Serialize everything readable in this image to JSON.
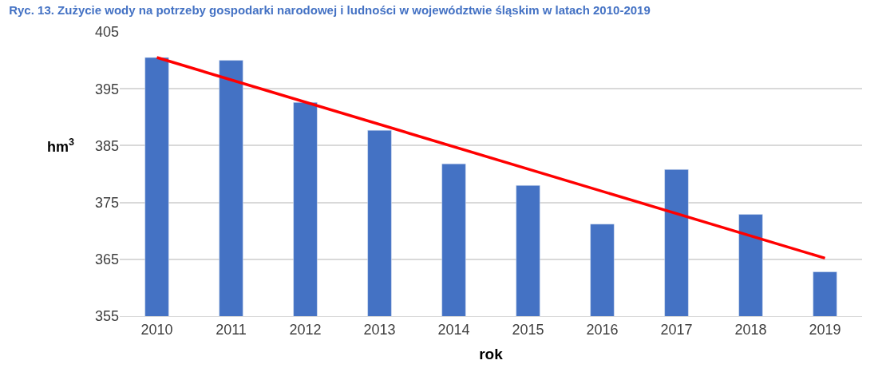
{
  "chart_data": {
    "type": "bar",
    "title": "Ryc. 13. Zużycie wody na potrzeby gospodarki narodowej i ludności w województwie śląskim w latach 2010-2019",
    "xlabel": "rok",
    "ylabel": "hm$^{3}$",
    "categories": [
      "2010",
      "2011",
      "2012",
      "2013",
      "2014",
      "2015",
      "2016",
      "2017",
      "2018",
      "2019"
    ],
    "series": [
      {
        "color": "#4472c4",
        "values": [
          400.5,
          400.0,
          392.6,
          387.7,
          381.8,
          378.0,
          371.2,
          380.8,
          372.9,
          362.8
        ]
      },
      {
        "type": "line",
        "color": "#ff0000",
        "values": [
          400.5,
          null,
          null,
          null,
          null,
          null,
          null,
          null,
          null,
          365.2
        ]
      }
    ],
    "ylim": [
      355,
      405
    ],
    "yticks": [
      355,
      365,
      375,
      385,
      395,
      405
    ],
    "grid": "y"
  }
}
